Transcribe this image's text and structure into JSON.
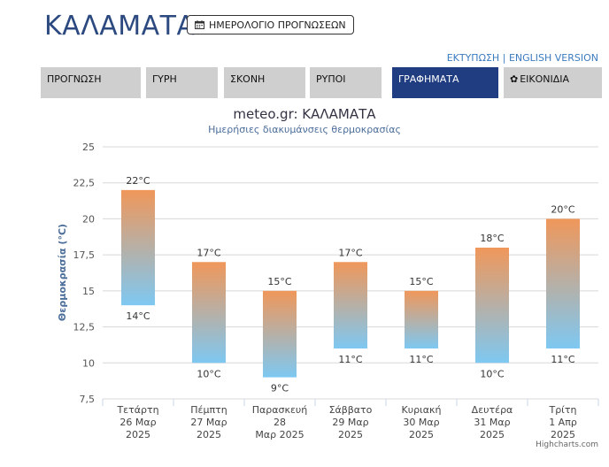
{
  "header": {
    "city": "ΚΑΛΑΜΑΤΑ",
    "calendar_button": "ΗΜΕΡΟΛΟΓΙΟ ΠΡΟΓΝΩΣΕΩΝ",
    "print_link": "ΕΚΤΥΠΩΣΗ",
    "separator": "|",
    "english_link": "ENGLISH VERSION"
  },
  "tabs": [
    {
      "label": "ΠΡΟΓΝΩΣΗ"
    },
    {
      "label": "ΓΥΡΗ"
    },
    {
      "label": "ΣΚΟΝΗ"
    },
    {
      "label": "ΡΥΠΟΙ"
    },
    {
      "label": "ΓΡΑΦΗΜΑΤΑ",
      "active": true
    },
    {
      "label": "ΕΙΚΟΝΙΔΙΑ"
    }
  ],
  "colors": {
    "accent": "#1f3d80",
    "bar_top": "#f0975a",
    "bar_bottom": "#7ec8f2"
  },
  "chart_data": {
    "type": "bar",
    "subtype": "floating-range",
    "title": "meteo.gr: ΚΑΛΑΜΑΤΑ",
    "subtitle": "Ημερήσιες διακυμάνσεις θερμοκρασίας",
    "ylabel": "Θερμοκρασία (°C)",
    "ylim": [
      7.5,
      25
    ],
    "yticks": [
      "7,5",
      "10",
      "12,5",
      "15",
      "17,5",
      "20",
      "22,5",
      "25"
    ],
    "grid": true,
    "categories": [
      [
        "Τετάρτη",
        "26 Μαρ",
        "2025"
      ],
      [
        "Πέμπτη",
        "27 Μαρ",
        "2025"
      ],
      [
        "Παρασκευή",
        "28",
        "Μαρ 2025"
      ],
      [
        "Σάββατο",
        "29 Μαρ",
        "2025"
      ],
      [
        "Κυριακή",
        "30 Μαρ",
        "2025"
      ],
      [
        "Δευτέρα",
        "31 Μαρ",
        "2025"
      ],
      [
        "Τρίτη",
        "1 Απρ",
        "2025"
      ]
    ],
    "min": [
      14,
      10,
      9,
      11,
      11,
      10,
      11
    ],
    "max": [
      22,
      17,
      15,
      17,
      15,
      18,
      20
    ],
    "min_labels": [
      "14°C",
      "10°C",
      "9°C",
      "11°C",
      "11°C",
      "10°C",
      "11°C"
    ],
    "max_labels": [
      "22°C",
      "17°C",
      "15°C",
      "17°C",
      "15°C",
      "18°C",
      "20°C"
    ]
  },
  "credits": "Highcharts.com"
}
